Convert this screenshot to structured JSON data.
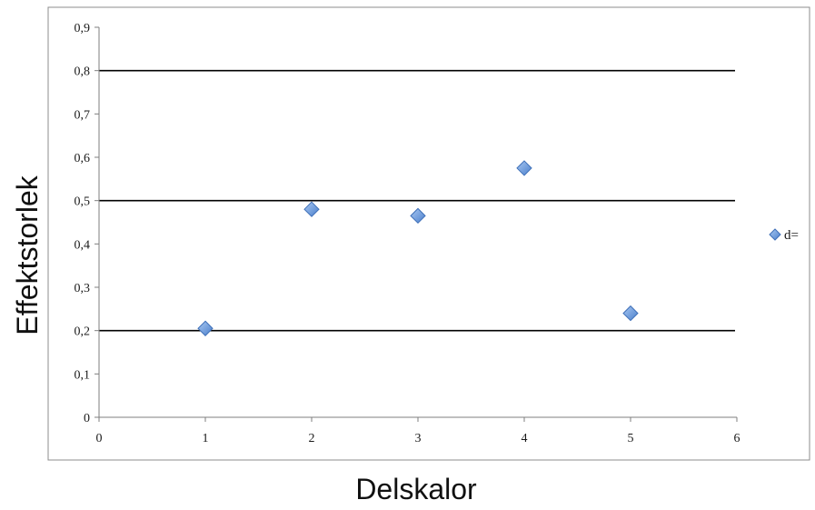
{
  "chart_data": {
    "type": "scatter",
    "title": "",
    "xlabel": "Delskalor",
    "ylabel": "Effektstorlek",
    "xlim": [
      0,
      6
    ],
    "ylim": [
      0,
      0.9
    ],
    "x_ticks": [
      0,
      1,
      2,
      3,
      4,
      5,
      6
    ],
    "x_tick_labels": [
      "0",
      "1",
      "2",
      "3",
      "4",
      "5",
      "6"
    ],
    "y_ticks": [
      0,
      0.1,
      0.2,
      0.3,
      0.4,
      0.5,
      0.6,
      0.7,
      0.8,
      0.9
    ],
    "y_tick_labels": [
      "0",
      "0,1",
      "0,2",
      "0,3",
      "0,4",
      "0,5",
      "0,6",
      "0,7",
      "0,8",
      "0,9"
    ],
    "reference_lines": [
      0.2,
      0.5,
      0.8
    ],
    "grid": false,
    "legend_position": "right",
    "series": [
      {
        "name": "d=",
        "marker": "diamond",
        "color": "#5b8fd6",
        "x": [
          1,
          2,
          3,
          4,
          5
        ],
        "y": [
          0.205,
          0.48,
          0.465,
          0.575,
          0.24
        ]
      }
    ]
  }
}
